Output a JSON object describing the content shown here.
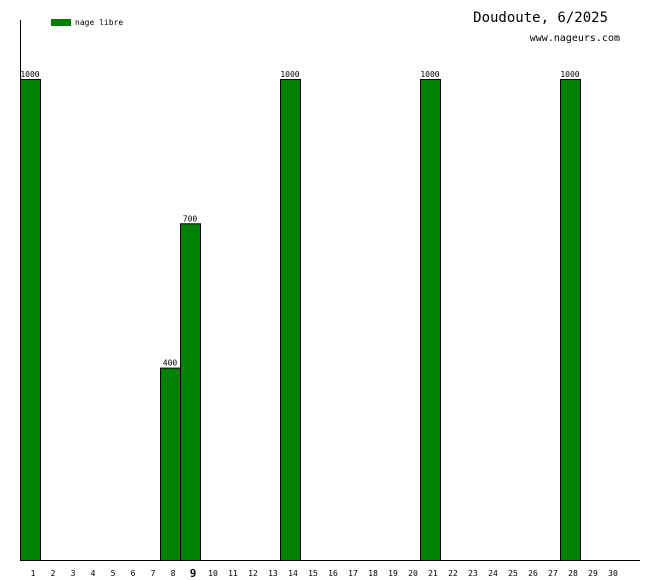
{
  "title": "Doudoute, 6/2025",
  "site": "www.nageurs.com",
  "colors": {
    "bar": "#008000",
    "bar_stroke": "#000000",
    "axis": "#000000"
  },
  "chart_data": {
    "type": "bar",
    "title": "Doudoute, 6/2025",
    "xlabel": "",
    "ylabel": "",
    "ylim": [
      0,
      1000
    ],
    "grid": false,
    "legend_position": "top-left",
    "highlight_category": "9",
    "categories": [
      "1",
      "2",
      "3",
      "4",
      "5",
      "6",
      "7",
      "8",
      "9",
      "10",
      "11",
      "12",
      "13",
      "14",
      "15",
      "16",
      "17",
      "18",
      "19",
      "20",
      "21",
      "22",
      "23",
      "24",
      "25",
      "26",
      "27",
      "28",
      "29",
      "30"
    ],
    "series": [
      {
        "name": "nage libre",
        "color": "#008000",
        "values": [
          1000,
          0,
          0,
          0,
          0,
          0,
          0,
          400,
          700,
          0,
          0,
          0,
          0,
          1000,
          0,
          0,
          0,
          0,
          0,
          0,
          1000,
          0,
          0,
          0,
          0,
          0,
          0,
          1000,
          0,
          0
        ]
      }
    ]
  }
}
